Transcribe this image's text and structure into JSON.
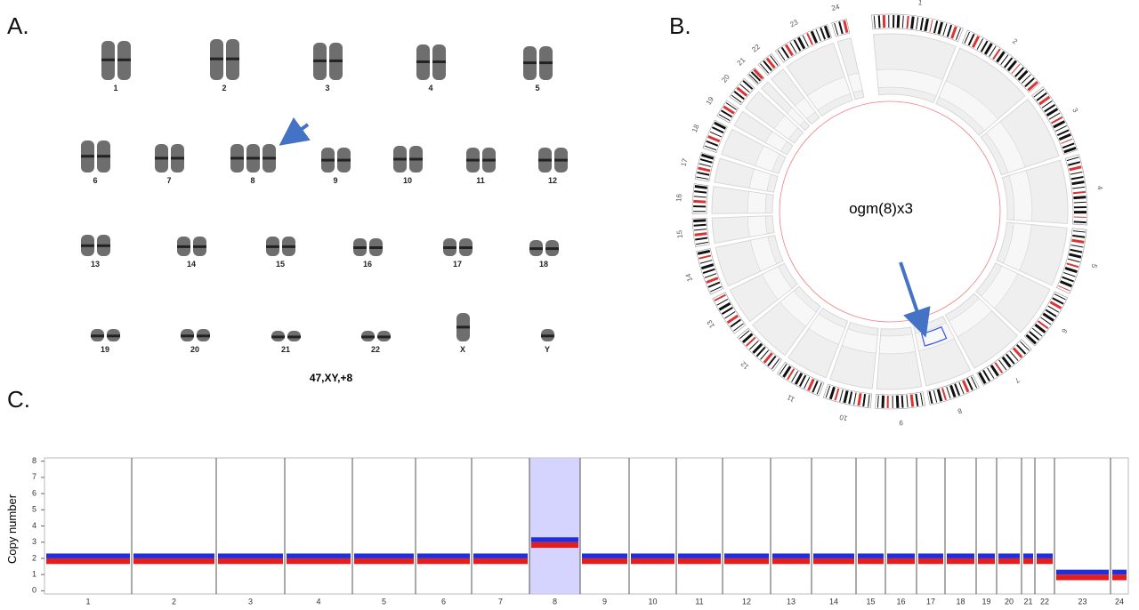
{
  "karyotype": {
    "label": "A.",
    "chromosomes": [
      "1",
      "2",
      "3",
      "4",
      "5",
      "6",
      "7",
      "8",
      "9",
      "10",
      "11",
      "12",
      "13",
      "14",
      "15",
      "16",
      "17",
      "18",
      "19",
      "20",
      "21",
      "22",
      "X",
      "Y"
    ],
    "formula": "47,XY,+8"
  },
  "circos": {
    "label": "B.",
    "segments": [
      "1",
      "2",
      "3",
      "4",
      "5",
      "6",
      "7",
      "8",
      "9",
      "10",
      "11",
      "12",
      "13",
      "14",
      "15",
      "16",
      "17",
      "18",
      "19",
      "20",
      "21",
      "22",
      "23",
      "24"
    ],
    "center_text": "ogm(8)x3"
  },
  "chart_data": {
    "type": "band",
    "label": "C.",
    "ylabel": "Copy number",
    "categories": [
      "1",
      "2",
      "3",
      "4",
      "5",
      "6",
      "7",
      "8",
      "9",
      "10",
      "11",
      "12",
      "13",
      "14",
      "15",
      "16",
      "17",
      "18",
      "19",
      "20",
      "21",
      "22",
      "23",
      "24"
    ],
    "values": [
      2,
      2,
      2,
      2,
      2,
      2,
      2,
      3,
      2,
      2,
      2,
      2,
      2,
      2,
      2,
      2,
      2,
      2,
      2,
      2,
      2,
      2,
      1,
      1
    ],
    "ylim": [
      -0.2,
      8.2
    ],
    "yticks": [
      0,
      1,
      2,
      3,
      4,
      5,
      6,
      7,
      8
    ],
    "upper_color": "#1f2fe0",
    "lower_color": "#e02020",
    "highlight": "8",
    "highlight_color": "#c9c9ff"
  }
}
